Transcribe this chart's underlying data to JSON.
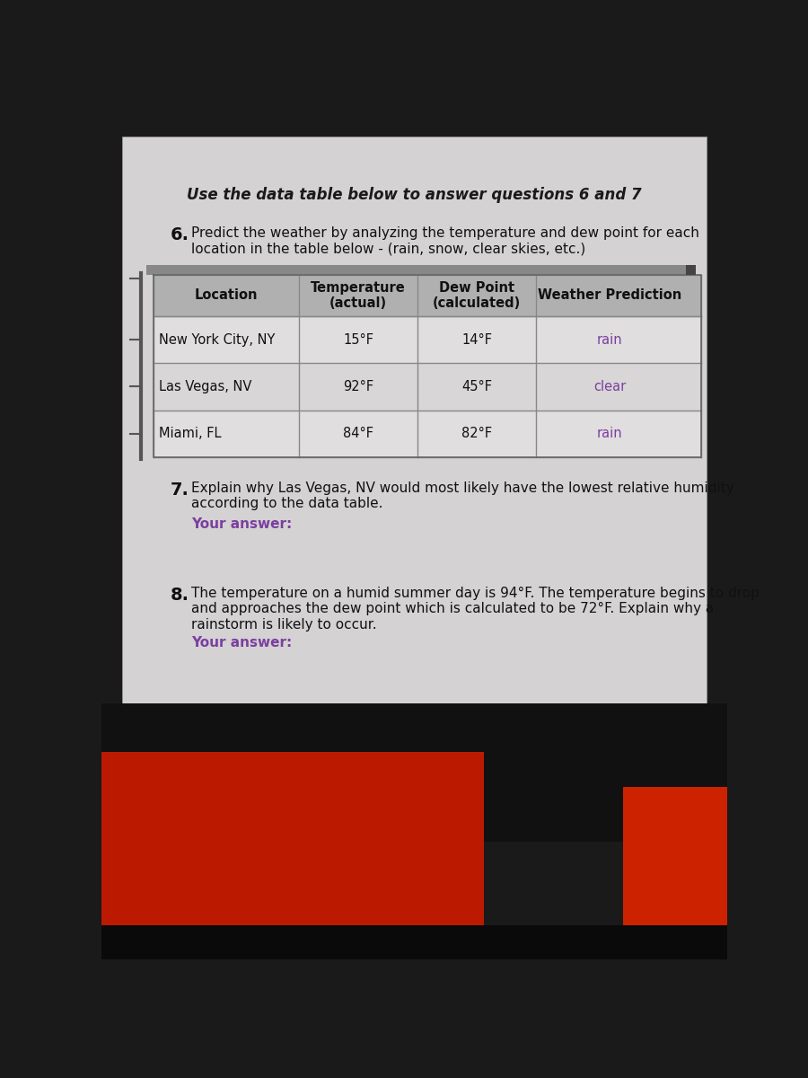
{
  "title": "Use the data table below to answer questions 6 and 7",
  "q6_label": "6.",
  "q6_text": "Predict the weather by analyzing the temperature and dew point for each\nlocation in the table below - (rain, snow, clear skies, etc.)",
  "table_headers": [
    "Location",
    "Temperature\n(actual)",
    "Dew Point\n(calculated)",
    "Weather Prediction"
  ],
  "table_rows": [
    [
      "New York City, NY",
      "15°F",
      "14°F",
      "rain"
    ],
    [
      "Las Vegas, NV",
      "92°F",
      "45°F",
      "clear"
    ],
    [
      "Miami, FL",
      "84°F",
      "82°F",
      "rain"
    ]
  ],
  "q7_label": "7.",
  "q7_text": "Explain why Las Vegas, NV would most likely have the lowest relative humidity\naccording to the data table.",
  "q7_answer_label": "Your answer:",
  "q8_label": "8.",
  "q8_text": "The temperature on a humid summer day is 94°F. The temperature begins to drop\nand approaches the dew point which is calculated to be 72°F. Explain why a\nrainstorm is likely to occur.",
  "q8_answer_label": "Your answer:",
  "page_bg": "#c8c8c8",
  "content_bg": "#d4d2d2",
  "device_border": "#1a1a1a",
  "device_inner": "#2d2d2d",
  "table_header_bg": "#b0b0b0",
  "table_row_bg1": "#e0dede",
  "table_row_bg2": "#d8d6d6",
  "answer_color": "#7B3FA0",
  "text_color": "#111111",
  "title_color": "#1a1a1a",
  "bottom_dark": "#1a1a1a",
  "bottom_red": "#cc2200",
  "scrollbar_color": "#888888",
  "left_border_color": "#555555"
}
